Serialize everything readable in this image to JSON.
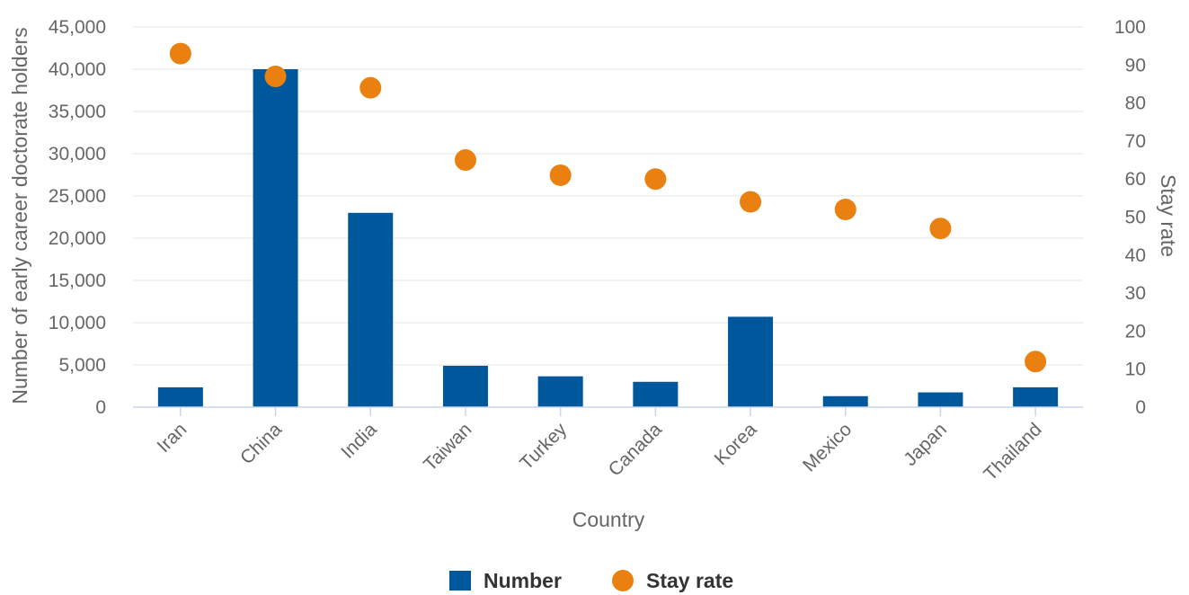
{
  "chart_data": {
    "type": "bar",
    "categories": [
      "Iran",
      "China",
      "India",
      "Taiwan",
      "Turkey",
      "Canada",
      "Korea",
      "Mexico",
      "Japan",
      "Thailand"
    ],
    "series": [
      {
        "name": "Number",
        "type": "bar",
        "axis": "left",
        "color": "#00589c",
        "values": [
          2350,
          40000,
          23000,
          4900,
          3650,
          3000,
          10700,
          1300,
          1750,
          2350
        ]
      },
      {
        "name": "Stay rate",
        "type": "scatter",
        "axis": "right",
        "color": "#e9800f",
        "values": [
          93,
          87,
          84,
          65,
          61,
          60,
          54,
          52,
          47,
          12
        ]
      }
    ],
    "xlabel": "Country",
    "ylabel": "Number of early career doctorate holders",
    "y2label": "Stay rate",
    "ylim": [
      0,
      45000
    ],
    "y2lim": [
      0,
      100
    ],
    "yticks": [
      "0",
      "5,000",
      "10,000",
      "15,000",
      "20,000",
      "25,000",
      "30,000",
      "35,000",
      "40,000",
      "45,000"
    ],
    "y2ticks": [
      "0",
      "10",
      "20",
      "30",
      "40",
      "50",
      "60",
      "70",
      "80",
      "90",
      "100"
    ],
    "grid": true,
    "legend_position": "bottom-center"
  }
}
